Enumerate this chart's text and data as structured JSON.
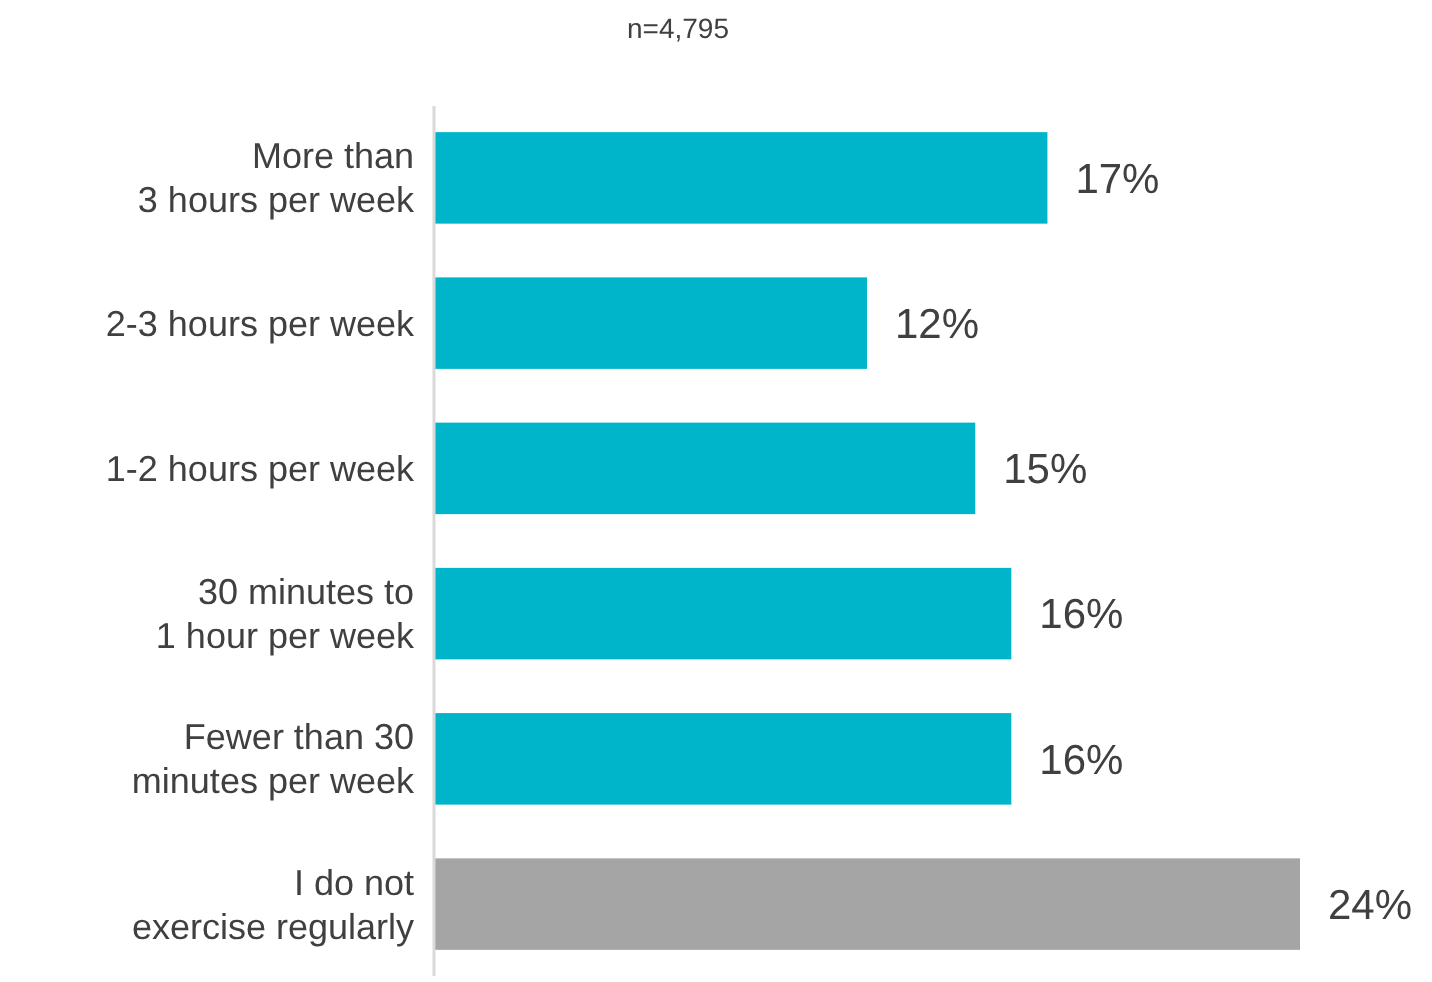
{
  "chart_data": {
    "type": "bar",
    "orientation": "horizontal",
    "title": "n=4,795",
    "categories": [
      "More than\n3 hours per week",
      "2-3 hours per week",
      "1-2 hours per week",
      "30 minutes to\n1 hour per week",
      "Fewer than 30\nminutes per week",
      "I do not\nexercise regularly"
    ],
    "values": [
      17,
      12,
      15,
      16,
      16,
      24
    ],
    "colors": [
      "#00b4c9",
      "#00b4c9",
      "#00b4c9",
      "#00b4c9",
      "#00b4c9",
      "#a5a5a5"
    ],
    "value_labels": [
      "17%",
      "12%",
      "15%",
      "16%",
      "16%",
      "24%"
    ]
  }
}
